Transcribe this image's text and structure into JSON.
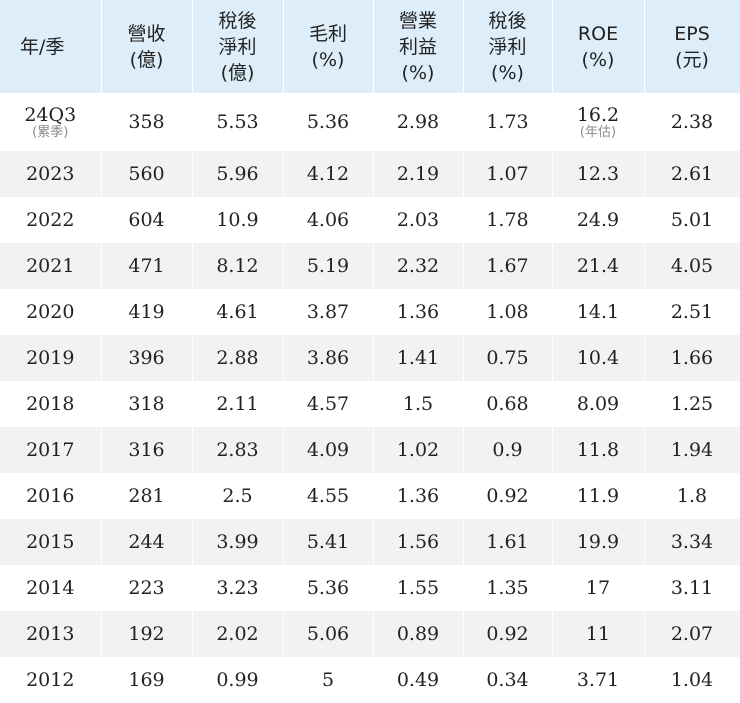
{
  "table": {
    "headers": [
      [
        "年/季"
      ],
      [
        "營收",
        "(億)"
      ],
      [
        "稅後",
        "淨利",
        "(億)"
      ],
      [
        "毛利",
        "(%)"
      ],
      [
        "營業",
        "利益",
        "(%)"
      ],
      [
        "稅後",
        "淨利",
        "(%)"
      ],
      [
        "ROE",
        "(%)"
      ],
      [
        "EPS",
        "(元)"
      ]
    ],
    "first_row": {
      "period": "24Q3",
      "period_note": "(累季)",
      "revenue": "358",
      "net_income": "5.53",
      "gross_margin": "5.36",
      "operating_margin": "2.98",
      "net_margin": "1.73",
      "roe": "16.2",
      "roe_note": "(年估)",
      "eps": "2.38"
    },
    "rows": [
      [
        "2023",
        "560",
        "5.96",
        "4.12",
        "2.19",
        "1.07",
        "12.3",
        "2.61"
      ],
      [
        "2022",
        "604",
        "10.9",
        "4.06",
        "2.03",
        "1.78",
        "24.9",
        "5.01"
      ],
      [
        "2021",
        "471",
        "8.12",
        "5.19",
        "2.32",
        "1.67",
        "21.4",
        "4.05"
      ],
      [
        "2020",
        "419",
        "4.61",
        "3.87",
        "1.36",
        "1.08",
        "14.1",
        "2.51"
      ],
      [
        "2019",
        "396",
        "2.88",
        "3.86",
        "1.41",
        "0.75",
        "10.4",
        "1.66"
      ],
      [
        "2018",
        "318",
        "2.11",
        "4.57",
        "1.5",
        "0.68",
        "8.09",
        "1.25"
      ],
      [
        "2017",
        "316",
        "2.83",
        "4.09",
        "1.02",
        "0.9",
        "11.8",
        "1.94"
      ],
      [
        "2016",
        "281",
        "2.5",
        "4.55",
        "1.36",
        "0.92",
        "11.9",
        "1.8"
      ],
      [
        "2015",
        "244",
        "3.99",
        "5.41",
        "1.56",
        "1.61",
        "19.9",
        "3.34"
      ],
      [
        "2014",
        "223",
        "3.23",
        "5.36",
        "1.55",
        "1.35",
        "17",
        "3.11"
      ],
      [
        "2013",
        "192",
        "2.02",
        "5.06",
        "0.89",
        "0.92",
        "11",
        "2.07"
      ],
      [
        "2012",
        "169",
        "0.99",
        "5",
        "0.49",
        "0.34",
        "3.71",
        "1.04"
      ]
    ]
  },
  "colors": {
    "header_background": "#ddeefa",
    "shaded_row": "#f2f2f2",
    "note_text": "#8a8a8a"
  }
}
